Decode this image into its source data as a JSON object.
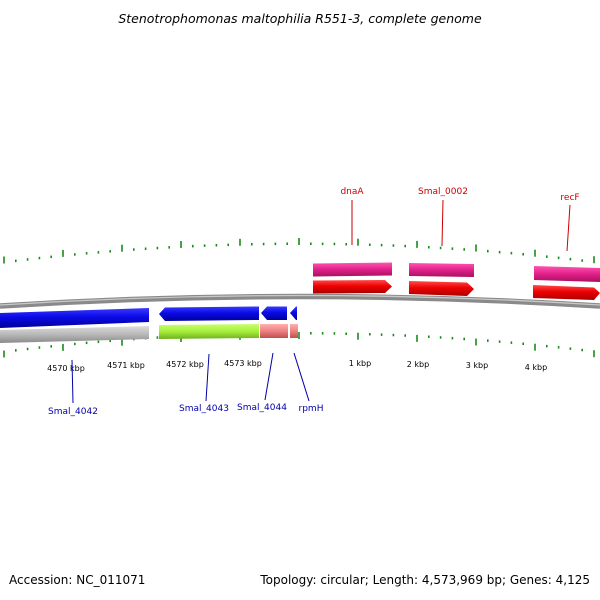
{
  "title": "Stenotrophomonas maltophilia R551-3, complete genome",
  "footer": {
    "accession": "Accession: NC_011071",
    "summary": "Topology: circular; Length: 4,573,969 bp; Genes: 4,125"
  },
  "scale_labels": [
    "4570 kbp",
    "4571 kbp",
    "4572 kbp",
    "4573 kbp",
    "1 kbp",
    "2 kbp",
    "3 kbp",
    "4 kbp"
  ],
  "genes_forward": [
    {
      "name": "dnaA",
      "color": "#cc0000"
    },
    {
      "name": "Smal_0002",
      "color": "#cc0000"
    },
    {
      "name": "recF",
      "color": "#cc0000"
    }
  ],
  "genes_reverse": [
    {
      "name": "Smal_4042",
      "color": "#0000aa"
    },
    {
      "name": "Smal_4043",
      "color": "#0000aa"
    },
    {
      "name": "Smal_4044",
      "color": "#0000aa"
    },
    {
      "name": "rpmH",
      "color": "#0000aa"
    }
  ],
  "colors": {
    "forward_cds": "#ee0000",
    "forward_gene": "#e0208a",
    "reverse_cds": "#0a0ae6",
    "reverse_gene_gray": "#b8b8b8",
    "reverse_gene_green": "#a6ee3a",
    "reverse_gene_pink": "#ee8080",
    "backbone": "#888888",
    "ticks": "#1a8a1a"
  }
}
